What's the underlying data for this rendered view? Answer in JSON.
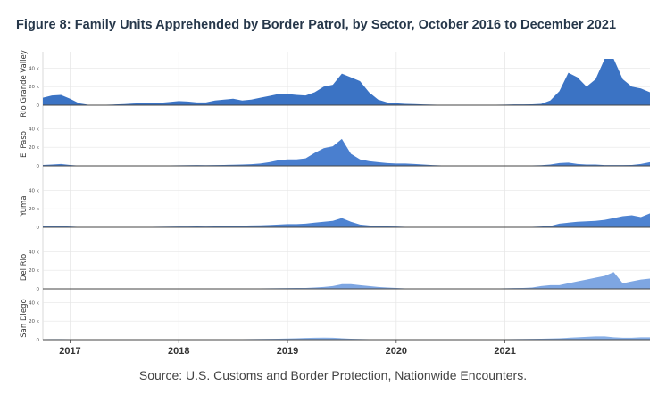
{
  "title": "Figure 8: Family Units Apprehended by Border Patrol, by Sector, October 2016 to December 2021",
  "source": "Source: U.S. Customs and Border Protection, Nationwide Encounters.",
  "chart_data": {
    "type": "area",
    "x_start": "2016-10",
    "x_end": "2021-12",
    "x_ticks": [
      "2017",
      "2018",
      "2019",
      "2020",
      "2021"
    ],
    "y_ticks": [
      "0",
      "20 k",
      "40 k"
    ],
    "ylim": [
      0,
      50000
    ],
    "series": [
      {
        "name": "Rio Grande Valley",
        "color": "#3b73c4",
        "values": [
          8000,
          10500,
          11000,
          7000,
          2000,
          500,
          300,
          500,
          800,
          1200,
          1800,
          2200,
          2400,
          2600,
          3500,
          4500,
          4000,
          3000,
          3000,
          5000,
          6000,
          7000,
          5000,
          6000,
          8000,
          10000,
          12000,
          12000,
          11000,
          10500,
          14000,
          20000,
          22000,
          34000,
          30000,
          26000,
          14000,
          6000,
          3000,
          2000,
          1500,
          1200,
          800,
          600,
          400,
          300,
          200,
          200,
          300,
          400,
          500,
          600,
          800,
          800,
          1000,
          1500,
          5000,
          15000,
          35000,
          30000,
          20000,
          28000,
          50000,
          50000,
          28000,
          20000,
          18000,
          14000
        ]
      },
      {
        "name": "El Paso",
        "color": "#4a7fcf",
        "values": [
          1000,
          1500,
          2000,
          1000,
          300,
          200,
          200,
          200,
          200,
          200,
          200,
          300,
          400,
          400,
          500,
          600,
          700,
          800,
          700,
          800,
          1000,
          1200,
          1500,
          1800,
          2500,
          4000,
          6000,
          7000,
          7000,
          8000,
          14000,
          19000,
          21000,
          29000,
          13000,
          7000,
          5000,
          4000,
          3000,
          2500,
          2500,
          2000,
          1500,
          800,
          500,
          300,
          200,
          200,
          200,
          200,
          200,
          300,
          400,
          400,
          500,
          700,
          1500,
          3000,
          3500,
          2000,
          1500,
          1500,
          800,
          800,
          800,
          1000,
          2000,
          4000
        ]
      },
      {
        "name": "Yuma",
        "color": "#4e83d1",
        "values": [
          1000,
          1200,
          1200,
          800,
          400,
          300,
          300,
          300,
          300,
          300,
          300,
          400,
          500,
          600,
          700,
          800,
          800,
          900,
          800,
          900,
          1000,
          1500,
          1800,
          2000,
          2200,
          2500,
          3000,
          3500,
          3500,
          4000,
          5000,
          6000,
          7000,
          10000,
          6000,
          3000,
          2000,
          1500,
          1000,
          800,
          500,
          400,
          300,
          200,
          200,
          200,
          200,
          200,
          200,
          200,
          200,
          200,
          300,
          400,
          500,
          800,
          1500,
          4000,
          5000,
          6000,
          6500,
          7000,
          8000,
          10000,
          12000,
          13000,
          11000,
          15000
        ]
      },
      {
        "name": "Del Rio",
        "color": "#7ea6e2",
        "values": [
          200,
          200,
          200,
          200,
          200,
          200,
          200,
          200,
          200,
          200,
          200,
          200,
          200,
          200,
          200,
          200,
          200,
          200,
          200,
          200,
          200,
          300,
          300,
          400,
          500,
          600,
          700,
          800,
          900,
          1000,
          1500,
          2000,
          3000,
          5000,
          5000,
          4000,
          3000,
          2000,
          1500,
          1000,
          500,
          400,
          300,
          200,
          200,
          200,
          200,
          200,
          200,
          300,
          400,
          600,
          800,
          1000,
          1500,
          3000,
          4000,
          4000,
          6000,
          8000,
          10000,
          12000,
          14000,
          18000,
          6000,
          8000,
          10000,
          11000
        ]
      },
      {
        "name": "San Diego",
        "color": "#86aee6",
        "values": [
          500,
          600,
          600,
          500,
          300,
          300,
          300,
          300,
          300,
          300,
          300,
          300,
          300,
          300,
          300,
          300,
          300,
          300,
          300,
          300,
          300,
          400,
          500,
          600,
          700,
          800,
          1000,
          1200,
          1500,
          1800,
          2000,
          2200,
          2000,
          1500,
          1000,
          700,
          500,
          400,
          300,
          300,
          200,
          200,
          200,
          200,
          200,
          200,
          200,
          200,
          300,
          300,
          400,
          500,
          600,
          700,
          800,
          1000,
          1200,
          1500,
          2000,
          2500,
          3000,
          3500,
          3500,
          2500,
          2000,
          2000,
          2500,
          2500
        ]
      }
    ]
  }
}
